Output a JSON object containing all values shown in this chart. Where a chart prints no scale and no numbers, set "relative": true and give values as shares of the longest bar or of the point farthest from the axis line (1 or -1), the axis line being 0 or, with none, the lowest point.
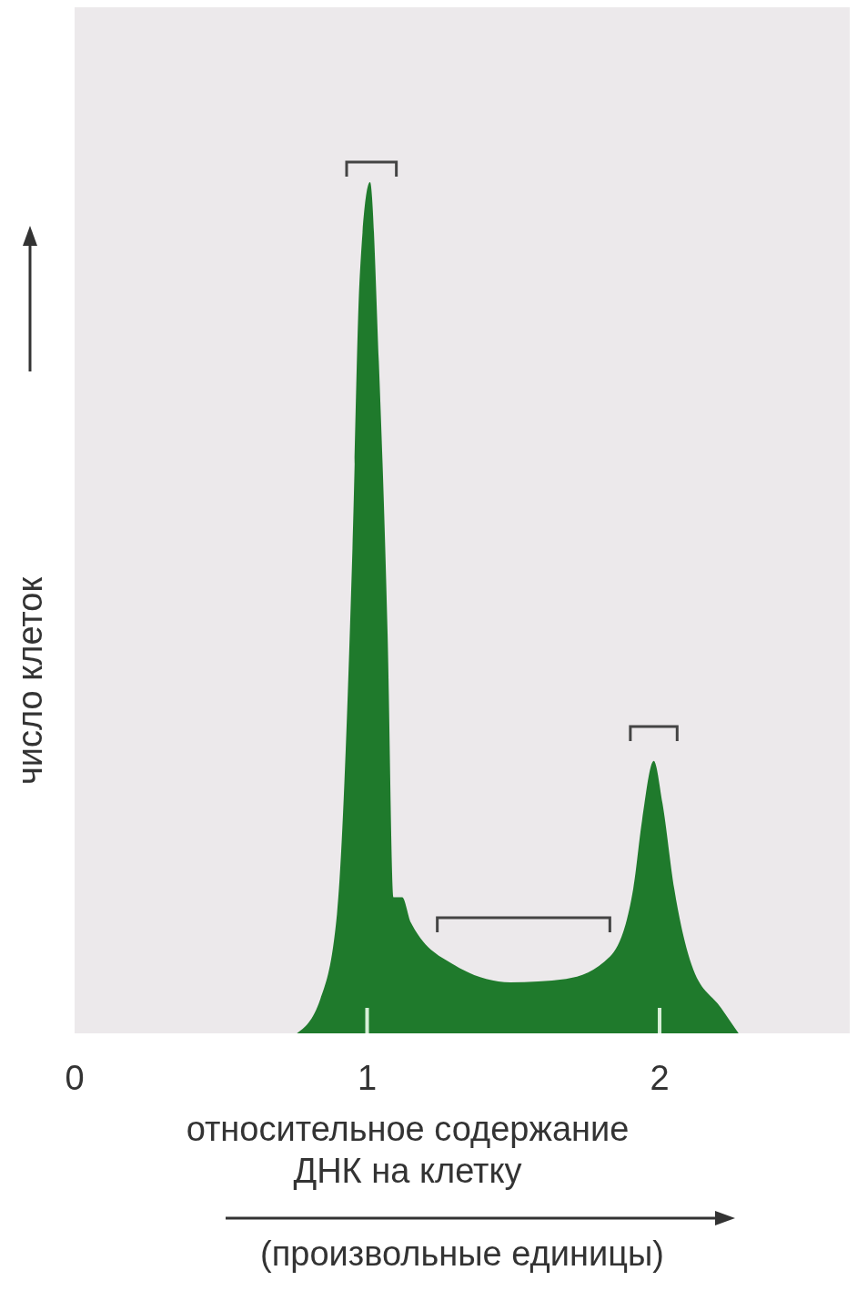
{
  "chart_data": {
    "type": "area",
    "relative": true,
    "x": [
      0.76,
      0.84,
      0.897,
      0.95,
      0.975,
      1.01,
      1.04,
      1.07,
      1.09,
      1.12,
      1.15,
      1.3,
      1.49,
      1.68,
      1.83,
      1.91,
      1.94,
      1.98,
      2.01,
      2.05,
      2.11,
      2.21,
      2.27
    ],
    "series": [
      {
        "color": "#1f7a2c",
        "values": [
          0,
          0.04,
          0.14,
          0.57,
          0.89,
          1,
          0.79,
          0.47,
          0.16,
          0.16,
          0.13,
          0.08,
          0.06,
          0.064,
          0.09,
          0.17,
          0.25,
          0.32,
          0.27,
          0.17,
          0.08,
          0.03,
          0
        ]
      }
    ],
    "xlim": [
      0,
      2.65
    ],
    "xticks": [
      0,
      1,
      2
    ],
    "xlabel": "относительное содержание\nДНК на клетку",
    "ylabel": "число клеток",
    "annotations": [
      "(произвольные единицы)"
    ]
  }
}
